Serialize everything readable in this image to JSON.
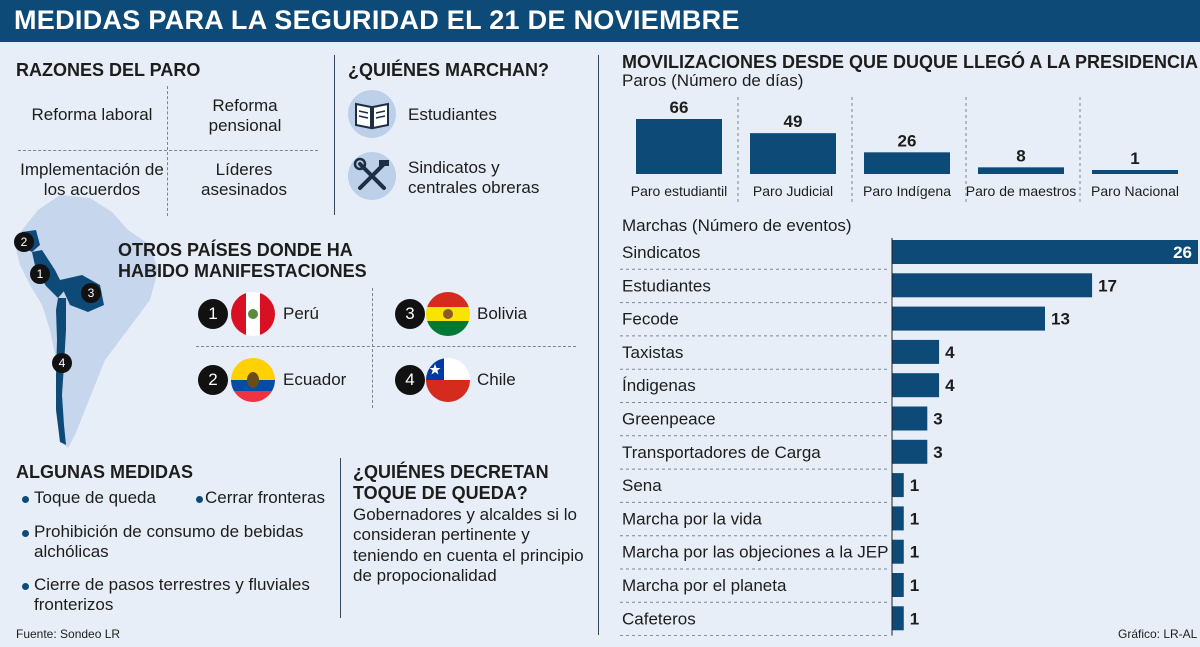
{
  "header": {
    "title": "MEDIDAS PARA LA SEGURIDAD EL 21 DE NOVIEMBRE"
  },
  "razones": {
    "title": "RAZONES DEL PARO",
    "items": [
      "Reforma laboral",
      "Reforma pensional",
      "Implementación de los acuerdos",
      "Líderes asesinados"
    ]
  },
  "quienes_marchan": {
    "title": "¿QUIÉNES MARCHAN?",
    "items": [
      {
        "label": "Estudiantes",
        "icon": "book-icon"
      },
      {
        "label": "Sindicatos y centrales obreras",
        "icon": "tools-icon"
      }
    ]
  },
  "otros_paises": {
    "title_line1": "OTROS PAÍSES DONDE HA",
    "title_line2": "HABIDO MANIFESTACIONES",
    "countries": [
      {
        "num": "1",
        "name": "Perú"
      },
      {
        "num": "2",
        "name": "Ecuador"
      },
      {
        "num": "3",
        "name": "Bolivia"
      },
      {
        "num": "4",
        "name": "Chile"
      }
    ]
  },
  "algunas_medidas": {
    "title": "ALGUNAS MEDIDAS",
    "items": [
      "Toque de queda",
      "Cerrar fronteras",
      "Prohibición de consumo de bebidas alchólicas",
      "Cierre de pasos terrestres y fluviales fronterizos"
    ]
  },
  "quienes_decretan": {
    "title_line1": "¿QUIÉNES DECRETAN",
    "title_line2": "TOQUE DE QUEDA?",
    "text": "Gobernadores y alcaldes si lo consideran pertinente y teniendo en cuenta el principio de propocionalidad"
  },
  "movilizaciones": {
    "title": "MOVILIZACIONES DESDE QUE DUQUE LLEGÓ A LA PRESIDENCIA"
  },
  "footer": {
    "source": "Fuente: Sondeo LR",
    "credit": "Gráfico: LR-AL"
  },
  "colors": {
    "bar": "#0d4a78",
    "header": "#0d4a78",
    "background": "#e8eef8"
  },
  "chart_data": [
    {
      "type": "bar",
      "title": "Paros (Número de días)",
      "categories": [
        "Paro estudiantil",
        "Paro Judicial",
        "Paro Indígena",
        "Paro de maestros",
        "Paro Nacional"
      ],
      "values": [
        66,
        49,
        26,
        8,
        1
      ]
    },
    {
      "type": "bar",
      "title": "Marchas (Número de eventos)",
      "orientation": "horizontal",
      "categories": [
        "Sindicatos",
        "Estudiantes",
        "Fecode",
        "Taxistas",
        "Índigenas",
        "Greenpeace",
        "Transportadores de Carga",
        "Sena",
        "Marcha por la vida",
        "Marcha por las objeciones a la JEP",
        "Marcha por el planeta",
        "Cafeteros"
      ],
      "values": [
        26,
        17,
        13,
        4,
        4,
        3,
        3,
        1,
        1,
        1,
        1,
        1
      ]
    }
  ]
}
